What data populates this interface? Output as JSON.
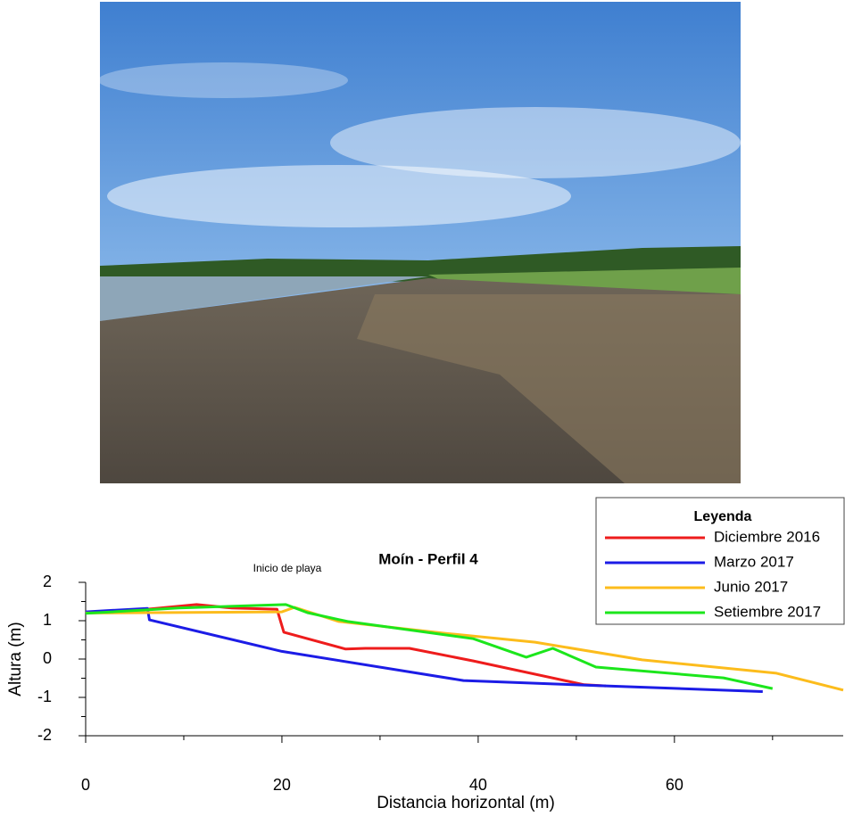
{
  "chart_data": {
    "type": "line",
    "title": "Moín - Perfil 4",
    "annotation": "Inicio de playa",
    "xlabel": "Distancia horizontal (m)",
    "ylabel": "Altura (m)",
    "legend_title": "Leyenda",
    "legend": "upper right",
    "xlim": [
      0,
      77.2
    ],
    "ylim": [
      -2,
      2
    ],
    "xticks": [
      0,
      20,
      40,
      60
    ],
    "xminorticks": [
      10,
      30,
      50,
      70
    ],
    "yticks": [
      -2,
      -1,
      0,
      1,
      2
    ],
    "yminorticks": [
      -1.5,
      -0.5,
      0.5,
      1.5
    ],
    "series": [
      {
        "name": "Diciembre 2016",
        "color": "#ee1c1c",
        "x": [
          0,
          6.3,
          11.3,
          14.9,
          19.5,
          20.2,
          26.5,
          28.5,
          33,
          39.5,
          50.8,
          53
        ],
        "values": [
          1.2,
          1.3,
          1.42,
          1.33,
          1.3,
          0.7,
          0.26,
          0.28,
          0.28,
          -0.05,
          -0.67,
          -0.7
        ]
      },
      {
        "name": "Marzo 2017",
        "color": "#1c1ce6",
        "x": [
          0,
          6.3,
          6.5,
          20,
          38.5,
          53,
          69
        ],
        "values": [
          1.23,
          1.32,
          1.02,
          0.2,
          -0.56,
          -0.7,
          -0.85
        ]
      },
      {
        "name": "Junio 2017",
        "color": "#fcbc1c",
        "x": [
          0,
          20,
          21.3,
          25.8,
          36.7,
          45.8,
          56.7,
          70.4,
          77.2
        ],
        "values": [
          1.2,
          1.23,
          1.35,
          0.98,
          0.67,
          0.44,
          -0.02,
          -0.37,
          -0.81
        ]
      },
      {
        "name": "Setiembre 2017",
        "color": "#1ce61c",
        "x": [
          0,
          9.5,
          20.4,
          22.6,
          26.7,
          39.5,
          44.9,
          47.6,
          52,
          65,
          70
        ],
        "values": [
          1.19,
          1.33,
          1.42,
          1.21,
          0.98,
          0.53,
          0.05,
          0.28,
          -0.21,
          -0.49,
          -0.77
        ]
      }
    ]
  }
}
